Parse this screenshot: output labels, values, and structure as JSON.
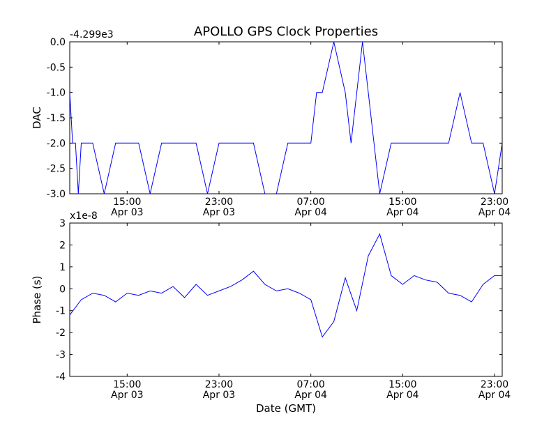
{
  "figure": {
    "title": "APOLLO GPS Clock Properties",
    "xlabel": "Date (GMT)"
  },
  "chart_data": [
    {
      "type": "line",
      "title": "APOLLO GPS Clock Properties",
      "xlabel": "",
      "ylabel": "DAC",
      "offset_label": "-4.299e3",
      "x_axis_type": "datetime",
      "xlim": [
        "2008-04-03T10:00",
        "2008-04-04T23:40"
      ],
      "ylim": [
        -3.0,
        0.0
      ],
      "y_ticks": [
        0.0,
        -0.5,
        -1.0,
        -1.5,
        -2.0,
        -2.5,
        -3.0
      ],
      "y_tick_labels": [
        "0.0",
        "-0.5",
        "-1.0",
        "-1.5",
        "-2.0",
        "-2.5",
        "-3.0"
      ],
      "x_ticks": [
        "2008-04-03T15:00",
        "2008-04-03T23:00",
        "2008-04-04T07:00",
        "2008-04-04T15:00",
        "2008-04-04T23:00"
      ],
      "x_tick_labels": [
        [
          "15:00",
          "Apr 03"
        ],
        [
          "23:00",
          "Apr 03"
        ],
        [
          "07:00",
          "Apr 04"
        ],
        [
          "15:00",
          "Apr 04"
        ],
        [
          "23:00",
          "Apr 04"
        ]
      ],
      "grid": false,
      "series_color": "#0000ff",
      "series": [
        {
          "values_description_free": true,
          "x": [
            "2008-04-03T10:00",
            "2008-04-03T10:15",
            "2008-04-03T10:30",
            "2008-04-03T10:45",
            "2008-04-03T11:00",
            "2008-04-03T12:00",
            "2008-04-03T13:00",
            "2008-04-03T14:00",
            "2008-04-03T15:00",
            "2008-04-03T16:00",
            "2008-04-03T17:00",
            "2008-04-03T18:00",
            "2008-04-03T19:00",
            "2008-04-03T20:00",
            "2008-04-03T21:00",
            "2008-04-03T22:00",
            "2008-04-03T23:00",
            "2008-04-04T00:00",
            "2008-04-04T01:00",
            "2008-04-04T02:00",
            "2008-04-04T03:00",
            "2008-04-04T04:00",
            "2008-04-04T05:00",
            "2008-04-04T06:00",
            "2008-04-04T07:00",
            "2008-04-04T07:30",
            "2008-04-04T08:00",
            "2008-04-04T09:00",
            "2008-04-04T10:00",
            "2008-04-04T10:30",
            "2008-04-04T11:00",
            "2008-04-04T11:30",
            "2008-04-04T12:00",
            "2008-04-04T12:30",
            "2008-04-04T13:00",
            "2008-04-04T14:00",
            "2008-04-04T15:00",
            "2008-04-04T16:00",
            "2008-04-04T17:00",
            "2008-04-04T18:00",
            "2008-04-04T19:00",
            "2008-04-04T20:00",
            "2008-04-04T21:00",
            "2008-04-04T22:00",
            "2008-04-04T23:00",
            "2008-04-04T23:40"
          ],
          "values": [
            -1.0,
            -2.0,
            -2.0,
            -3.0,
            -2.0,
            -2.0,
            -3.0,
            -2.0,
            -2.0,
            -2.0,
            -3.0,
            -2.0,
            -2.0,
            -2.0,
            -2.0,
            -3.0,
            -2.0,
            -2.0,
            -2.0,
            -2.0,
            -3.0,
            -3.0,
            -2.0,
            -2.0,
            -2.0,
            -1.0,
            -1.0,
            0.0,
            -1.0,
            -2.0,
            -1.0,
            0.0,
            -1.0,
            -2.0,
            -3.0,
            -2.0,
            -2.0,
            -2.0,
            -2.0,
            -2.0,
            -2.0,
            -1.0,
            -2.0,
            -2.0,
            -3.0,
            -2.0
          ]
        }
      ]
    },
    {
      "type": "line",
      "xlabel": "Date (GMT)",
      "ylabel": "Phase (s)",
      "offset_label": "x1e-8",
      "x_axis_type": "datetime",
      "xlim": [
        "2008-04-03T10:00",
        "2008-04-04T23:40"
      ],
      "ylim": [
        -4,
        3
      ],
      "y_ticks": [
        3,
        2,
        1,
        0,
        -1,
        -2,
        -3,
        -4
      ],
      "y_tick_labels": [
        "3",
        "2",
        "1",
        "0",
        "-1",
        "-2",
        "-3",
        "-4"
      ],
      "x_ticks": [
        "2008-04-03T15:00",
        "2008-04-03T23:00",
        "2008-04-04T07:00",
        "2008-04-04T15:00",
        "2008-04-04T23:00"
      ],
      "x_tick_labels": [
        [
          "15:00",
          "Apr 03"
        ],
        [
          "23:00",
          "Apr 03"
        ],
        [
          "07:00",
          "Apr 04"
        ],
        [
          "15:00",
          "Apr 04"
        ],
        [
          "23:00",
          "Apr 04"
        ]
      ],
      "grid": false,
      "series_color": "#0000ff",
      "series": [
        {
          "x": [
            "2008-04-03T10:00",
            "2008-04-03T11:00",
            "2008-04-03T12:00",
            "2008-04-03T13:00",
            "2008-04-03T14:00",
            "2008-04-03T15:00",
            "2008-04-03T16:00",
            "2008-04-03T17:00",
            "2008-04-03T18:00",
            "2008-04-03T19:00",
            "2008-04-03T20:00",
            "2008-04-03T21:00",
            "2008-04-03T22:00",
            "2008-04-03T23:00",
            "2008-04-04T00:00",
            "2008-04-04T01:00",
            "2008-04-04T02:00",
            "2008-04-04T03:00",
            "2008-04-04T04:00",
            "2008-04-04T05:00",
            "2008-04-04T06:00",
            "2008-04-04T07:00",
            "2008-04-04T08:00",
            "2008-04-04T09:00",
            "2008-04-04T10:00",
            "2008-04-04T11:00",
            "2008-04-04T12:00",
            "2008-04-04T13:00",
            "2008-04-04T14:00",
            "2008-04-04T15:00",
            "2008-04-04T16:00",
            "2008-04-04T17:00",
            "2008-04-04T18:00",
            "2008-04-04T19:00",
            "2008-04-04T20:00",
            "2008-04-04T21:00",
            "2008-04-04T22:00",
            "2008-04-04T23:00",
            "2008-04-04T23:40"
          ],
          "values": [
            -1.2,
            -0.5,
            -0.2,
            -0.3,
            -0.6,
            -0.2,
            -0.3,
            -0.1,
            -0.2,
            0.1,
            -0.4,
            0.2,
            -0.3,
            -0.1,
            0.1,
            0.4,
            0.8,
            0.2,
            -0.1,
            0.0,
            -0.2,
            -0.5,
            -2.2,
            -1.5,
            0.5,
            -1.0,
            1.5,
            2.5,
            0.6,
            0.2,
            0.6,
            0.4,
            0.3,
            -0.2,
            -0.3,
            -0.6,
            0.2,
            0.6,
            0.6
          ]
        }
      ]
    }
  ]
}
